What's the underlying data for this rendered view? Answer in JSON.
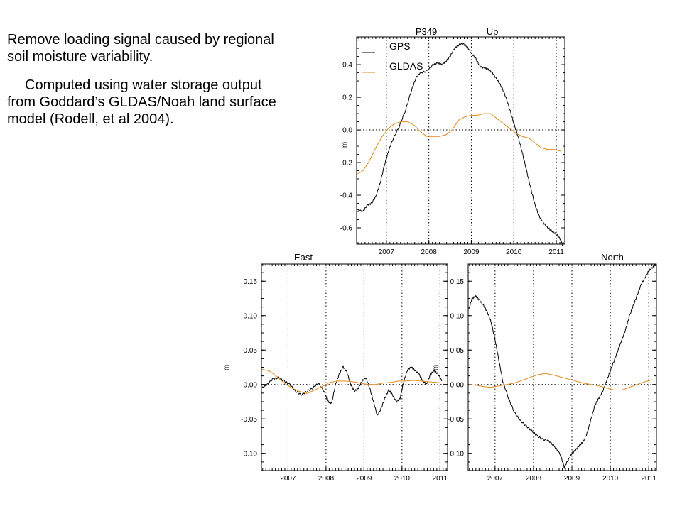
{
  "text": {
    "para1": "Remove loading signal caused by regional soil moisture variability.",
    "para2": "Computed using water storage output from Goddard’s GLDAS/Noah land surface model (Rodell, et al 2004)."
  },
  "colors": {
    "gps": "#000000",
    "gldas": "#E08A1C"
  },
  "chart_data": [
    {
      "type": "line",
      "title": "P349",
      "component": "Up",
      "ylabel": "m",
      "xlim": [
        2006.3,
        2011.2
      ],
      "ylim": [
        -0.7,
        0.57
      ],
      "xticks": [
        2007,
        2008,
        2009,
        2010,
        2011
      ],
      "yticks": [
        -0.6,
        -0.4,
        -0.2,
        0.0,
        0.2,
        0.4
      ],
      "ytick_labels": [
        "-0.6",
        "-0.4",
        "-0.2",
        "0.0",
        "0.2",
        "0.4"
      ],
      "grid": "dotted at year boundaries and zero",
      "legend": {
        "position": "top-left",
        "entries": [
          "GPS",
          "GLDAS"
        ]
      },
      "series": [
        {
          "name": "GPS",
          "color": "#000000",
          "x": [
            2006.32,
            2006.45,
            2006.55,
            2006.65,
            2006.75,
            2006.85,
            2006.95,
            2007.05,
            2007.15,
            2007.3,
            2007.45,
            2007.6,
            2007.7,
            2007.8,
            2007.95,
            2008.1,
            2008.2,
            2008.3,
            2008.4,
            2008.5,
            2008.6,
            2008.7,
            2008.8,
            2008.9,
            2009.0,
            2009.1,
            2009.2,
            2009.3,
            2009.4,
            2009.5,
            2009.6,
            2009.7,
            2009.8,
            2009.9,
            2010.0,
            2010.1,
            2010.2,
            2010.3,
            2010.4,
            2010.5,
            2010.6,
            2010.7,
            2010.8,
            2010.9,
            2011.0,
            2011.1,
            2011.15
          ],
          "y": [
            -0.49,
            -0.5,
            -0.46,
            -0.45,
            -0.41,
            -0.33,
            -0.22,
            -0.13,
            -0.06,
            0.02,
            0.12,
            0.25,
            0.32,
            0.35,
            0.36,
            0.4,
            0.41,
            0.4,
            0.42,
            0.45,
            0.5,
            0.52,
            0.53,
            0.51,
            0.47,
            0.44,
            0.39,
            0.38,
            0.37,
            0.35,
            0.31,
            0.27,
            0.21,
            0.13,
            0.04,
            -0.04,
            -0.14,
            -0.25,
            -0.36,
            -0.46,
            -0.53,
            -0.57,
            -0.6,
            -0.62,
            -0.64,
            -0.67,
            -0.71
          ]
        },
        {
          "name": "GLDAS",
          "color": "#E08A1C",
          "x": [
            2006.32,
            2006.45,
            2006.6,
            2006.75,
            2006.9,
            2007.05,
            2007.2,
            2007.35,
            2007.5,
            2007.65,
            2007.8,
            2007.95,
            2008.1,
            2008.25,
            2008.4,
            2008.55,
            2008.7,
            2008.85,
            2009.0,
            2009.15,
            2009.3,
            2009.45,
            2009.6,
            2009.75,
            2009.9,
            2010.05,
            2010.2,
            2010.35,
            2010.5,
            2010.65,
            2010.8,
            2010.95,
            2011.1
          ],
          "y": [
            -0.27,
            -0.25,
            -0.19,
            -0.11,
            -0.04,
            0.01,
            0.04,
            0.05,
            0.05,
            0.03,
            -0.01,
            -0.04,
            -0.04,
            -0.04,
            -0.03,
            0.0,
            0.06,
            0.08,
            0.09,
            0.09,
            0.1,
            0.1,
            0.07,
            0.04,
            0.01,
            -0.02,
            -0.04,
            -0.05,
            -0.08,
            -0.11,
            -0.12,
            -0.12,
            -0.13
          ]
        }
      ]
    },
    {
      "type": "line",
      "title": "East",
      "ylabel": "m",
      "xlim": [
        2006.3,
        2011.2
      ],
      "ylim": [
        -0.125,
        0.175
      ],
      "xticks": [
        2007,
        2008,
        2009,
        2010,
        2011
      ],
      "yticks": [
        -0.1,
        -0.05,
        0.0,
        0.05,
        0.1,
        0.15
      ],
      "ytick_labels": [
        "-0.10",
        "-0.05",
        "0.00",
        "0.05",
        "0.10",
        "0.15"
      ],
      "grid": "dotted at year boundaries and zero",
      "series": [
        {
          "name": "GPS",
          "color": "#000000",
          "x": [
            2006.32,
            2006.45,
            2006.6,
            2006.75,
            2006.9,
            2007.05,
            2007.2,
            2007.35,
            2007.5,
            2007.65,
            2007.8,
            2007.95,
            2008.05,
            2008.15,
            2008.25,
            2008.35,
            2008.45,
            2008.55,
            2008.65,
            2008.75,
            2008.85,
            2008.95,
            2009.05,
            2009.15,
            2009.25,
            2009.35,
            2009.45,
            2009.55,
            2009.65,
            2009.75,
            2009.85,
            2009.95,
            2010.05,
            2010.15,
            2010.25,
            2010.35,
            2010.45,
            2010.55,
            2010.65,
            2010.75,
            2010.85,
            2010.95,
            2011.05
          ],
          "y": [
            -0.005,
            0.0,
            0.008,
            0.01,
            0.005,
            0.0,
            -0.01,
            -0.015,
            -0.01,
            -0.005,
            0.002,
            -0.01,
            -0.025,
            -0.027,
            0.0,
            0.015,
            0.026,
            0.018,
            0.0,
            -0.01,
            -0.005,
            0.005,
            0.01,
            -0.005,
            -0.025,
            -0.045,
            -0.035,
            -0.02,
            -0.008,
            -0.015,
            -0.025,
            -0.02,
            0.005,
            0.022,
            0.025,
            0.02,
            0.015,
            0.005,
            0.0,
            0.015,
            0.02,
            0.015,
            0.005
          ]
        },
        {
          "name": "GLDAS",
          "color": "#E08A1C",
          "x": [
            2006.32,
            2006.5,
            2006.7,
            2006.9,
            2007.1,
            2007.3,
            2007.5,
            2007.7,
            2007.9,
            2008.1,
            2008.3,
            2008.5,
            2008.7,
            2008.9,
            2009.1,
            2009.3,
            2009.5,
            2009.7,
            2009.9,
            2010.1,
            2010.3,
            2010.5,
            2010.7,
            2010.9,
            2011.1
          ],
          "y": [
            0.022,
            0.02,
            0.012,
            0.002,
            -0.005,
            -0.01,
            -0.013,
            -0.008,
            -0.003,
            0.003,
            0.005,
            0.005,
            0.004,
            0.002,
            0.0,
            0.0,
            0.002,
            0.003,
            0.005,
            0.005,
            0.006,
            0.005,
            0.004,
            0.003,
            0.002
          ]
        }
      ]
    },
    {
      "type": "line",
      "title": "North",
      "ylabel": "m",
      "xlim": [
        2006.3,
        2011.2
      ],
      "ylim": [
        -0.125,
        0.175
      ],
      "xticks": [
        2007,
        2008,
        2009,
        2010,
        2011
      ],
      "yticks": [
        -0.1,
        -0.05,
        0.0,
        0.05,
        0.1,
        0.15
      ],
      "ytick_labels": [
        "-0.10",
        "-0.05",
        "0.00",
        "0.05",
        "0.10",
        "0.15"
      ],
      "grid": "dotted at year boundaries and zero",
      "series": [
        {
          "name": "GPS",
          "color": "#000000",
          "x": [
            2006.32,
            2006.4,
            2006.5,
            2006.6,
            2006.7,
            2006.8,
            2006.9,
            2007.0,
            2007.1,
            2007.2,
            2007.35,
            2007.5,
            2007.65,
            2007.8,
            2007.95,
            2008.1,
            2008.25,
            2008.4,
            2008.55,
            2008.7,
            2008.8,
            2008.9,
            2009.0,
            2009.1,
            2009.2,
            2009.3,
            2009.4,
            2009.5,
            2009.6,
            2009.7,
            2009.8,
            2009.9,
            2010.0,
            2010.1,
            2010.2,
            2010.3,
            2010.4,
            2010.5,
            2010.6,
            2010.7,
            2010.8,
            2010.9,
            2011.0,
            2011.1,
            2011.18
          ],
          "y": [
            0.11,
            0.125,
            0.128,
            0.122,
            0.115,
            0.105,
            0.09,
            0.065,
            0.035,
            0.005,
            -0.02,
            -0.04,
            -0.052,
            -0.06,
            -0.067,
            -0.075,
            -0.08,
            -0.082,
            -0.09,
            -0.102,
            -0.12,
            -0.11,
            -0.1,
            -0.095,
            -0.088,
            -0.083,
            -0.07,
            -0.05,
            -0.03,
            -0.02,
            -0.01,
            0.005,
            0.02,
            0.035,
            0.05,
            0.065,
            0.08,
            0.1,
            0.115,
            0.13,
            0.145,
            0.155,
            0.165,
            0.17,
            0.175
          ]
        },
        {
          "name": "GLDAS",
          "color": "#E08A1C",
          "x": [
            2006.32,
            2006.5,
            2006.7,
            2006.9,
            2007.1,
            2007.3,
            2007.5,
            2007.7,
            2007.9,
            2008.1,
            2008.3,
            2008.5,
            2008.7,
            2008.9,
            2009.1,
            2009.3,
            2009.5,
            2009.7,
            2009.9,
            2010.1,
            2010.3,
            2010.5,
            2010.7,
            2010.9,
            2011.1
          ],
          "y": [
            0.0,
            -0.001,
            -0.003,
            -0.004,
            -0.002,
            0.0,
            0.002,
            0.006,
            0.01,
            0.014,
            0.016,
            0.014,
            0.011,
            0.008,
            0.005,
            0.002,
            0.0,
            -0.002,
            -0.005,
            -0.008,
            -0.008,
            -0.004,
            0.0,
            0.004,
            0.007
          ]
        }
      ]
    }
  ]
}
